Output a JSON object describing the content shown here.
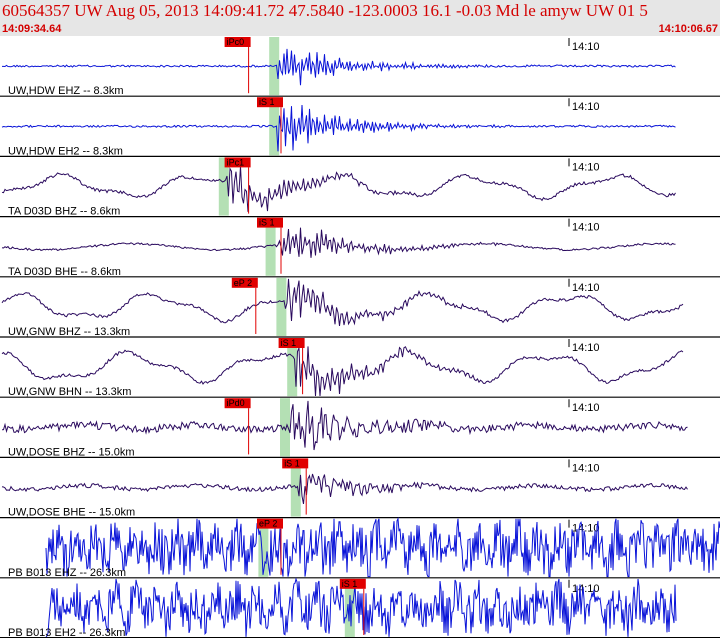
{
  "header": {
    "title": "60564357 UW Aug 05, 2013 14:09:41.72   47.5840 -123.0003 16.1 -0.03 Md le amyw UW 01   5",
    "start_time": "14:09:34.64",
    "end_time": "14:10:06.67"
  },
  "colors": {
    "header_bg": "#e6e6e6",
    "header_text": "#d40000",
    "trace_blue": "#0a14d8",
    "trace_purple": "#2a0a5e",
    "pick_box": "#e00000",
    "pick_window": "#b4e0b4",
    "divider": "#000000"
  },
  "traces": [
    {
      "label": "UW,HDW EHZ -- 8.3km",
      "tick": "14:10",
      "pick": "iPc0",
      "color": "blue",
      "style": "quiet",
      "pick_frac": 0.33,
      "onset_frac": 0.385,
      "end_frac": 0.94,
      "amp": 0.2
    },
    {
      "label": "UW,HDW EH2 -- 8.3km",
      "tick": "14:10",
      "pick": "iS 1",
      "color": "blue",
      "style": "quiet",
      "pick_frac": 0.375,
      "onset_frac": 0.385,
      "end_frac": 0.94,
      "amp": 0.25
    },
    {
      "label": "TA D03D BHZ -- 8.6km",
      "tick": "14:10",
      "pick": "iPc1",
      "color": "purple",
      "style": "wavy",
      "pick_frac": 0.33,
      "onset_frac": 0.315,
      "end_frac": 0.94,
      "amp": 0.35
    },
    {
      "label": "TA D03D BHE -- 8.6km",
      "tick": "14:10",
      "pick": "iS 1",
      "color": "purple",
      "style": "burst",
      "pick_frac": 0.375,
      "onset_frac": 0.38,
      "end_frac": 0.94,
      "amp": 0.3
    },
    {
      "label": "UW,GNW BHZ -- 13.3km",
      "tick": "14:10",
      "pick": "eP 2",
      "color": "purple",
      "style": "wavy",
      "pick_frac": 0.34,
      "onset_frac": 0.395,
      "end_frac": 0.95,
      "amp": 0.4
    },
    {
      "label": "UW,GNW BHN -- 13.3km",
      "tick": "14:10",
      "pick": "iS 1",
      "color": "purple",
      "style": "wavy",
      "pick_frac": 0.405,
      "onset_frac": 0.41,
      "end_frac": 0.95,
      "amp": 0.45
    },
    {
      "label": "UW,DOSE BHZ -- 15.0km",
      "tick": "14:10",
      "pick": "iPd0",
      "color": "purple",
      "style": "noisy",
      "pick_frac": 0.33,
      "onset_frac": 0.4,
      "end_frac": 0.955,
      "amp": 0.35
    },
    {
      "label": "UW,DOSE BHE -- 15.0km",
      "tick": "14:10",
      "pick": "iS 1",
      "color": "purple",
      "style": "noisy",
      "pick_frac": 0.41,
      "onset_frac": 0.415,
      "end_frac": 0.955,
      "amp": 0.2
    },
    {
      "label": "PB B013 EHZ -- 26.3km",
      "tick": "14:10",
      "pick": "eP 2",
      "color": "blue",
      "style": "dense",
      "pick_frac": 0.375,
      "onset_frac": 0.37,
      "end_frac": 1.0,
      "amp": 0.55
    },
    {
      "label": "PB B013 EH2 -- 26.3km",
      "tick": "14:10",
      "pick": "iS 1",
      "color": "blue",
      "style": "dense",
      "pick_frac": 0.49,
      "onset_frac": 0.49,
      "end_frac": 0.94,
      "amp": 0.5
    }
  ]
}
